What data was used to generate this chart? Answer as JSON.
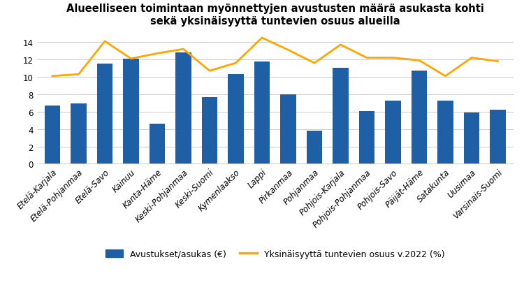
{
  "title": "Alueelliseen toimintaan myönnettyjen avustusten määrä asukasta kohti\nsekä yksinäisyyttä tuntevien osuus alueilla",
  "categories": [
    "Etelä-Karjala",
    "Etelä-Pohjanmaa",
    "Etelä-Savo",
    "Kainuu",
    "Kanta-Häme",
    "Keski-Pohjanmaa",
    "Keski-Suomi",
    "Kymenlaakso",
    "Lappi",
    "Pirkanmaa",
    "Pohjanmaa",
    "Pohjois-Karjala",
    "Pohjois-Pohjanmaa",
    "Pohjois-Savo",
    "Päijät-Häme",
    "Satakunta",
    "Uusimaa",
    "Varsinais-Suomi"
  ],
  "bar_values": [
    6.69,
    6.94,
    11.51,
    12.12,
    4.62,
    12.84,
    7.66,
    10.35,
    11.73,
    7.96,
    3.84,
    11.04,
    6.03,
    7.29,
    10.74,
    7.24,
    5.88,
    6.2
  ],
  "line_values": [
    10.1,
    10.3,
    14.1,
    12.1,
    12.7,
    13.2,
    10.7,
    11.6,
    14.5,
    13.1,
    11.6,
    13.7,
    12.2,
    12.2,
    11.9,
    10.1,
    12.2,
    11.8
  ],
  "bar_color": "#1F5FA6",
  "line_color": "#FFA500",
  "bar_label": "Avustukset/asukas (€)",
  "line_label": "Yksinäisyyttä tuntevien osuus v.2022 (%)",
  "ylim": [
    0,
    15
  ],
  "yticks": [
    0,
    2,
    4,
    6,
    8,
    10,
    12,
    14
  ],
  "background_color": "#ffffff",
  "title_fontsize": 10.5,
  "tick_fontsize": 8.5,
  "legend_fontsize": 9.0
}
